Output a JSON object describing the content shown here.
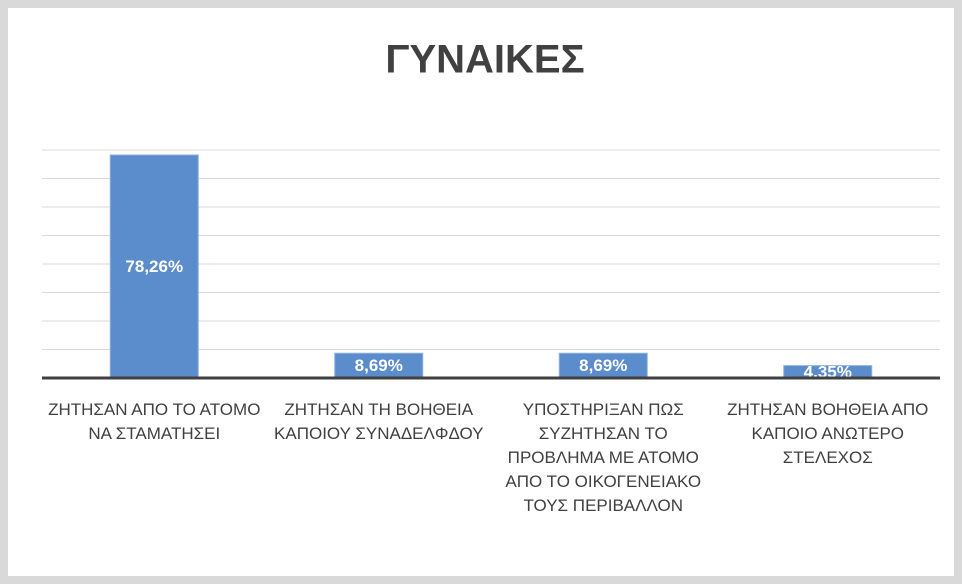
{
  "chart_data": {
    "type": "bar",
    "title": "ΓΥΝΑΙΚΕΣ",
    "categories": [
      "ΖΗΤΗΣΑΝ ΑΠΟ ΤΟ ΑΤΟΜΟ ΝΑ ΣΤΑΜΑΤΗΣΕΙ",
      "ΖΗΤΗΣΑΝ ΤΗ ΒΟΗΘΕΙΑ ΚΑΠΟΙΟΥ ΣΥΝΑΔΕΛΦΔΟΥ",
      "ΥΠΟΣΤΗΡΙΞΑΝ ΠΩΣ ΣΥΖΗΤΗΣΑΝ ΤΟ ΠΡΟΒΛΗΜΑ ΜΕ ΑΤΟΜΟ ΑΠΟ ΤΟ ΟΙΚΟΓΕΝΕΙΑΚΟ ΤΟΥΣ ΠΕΡΙΒΑΛΛΟΝ",
      "ΖΗΤΗΣΑΝ ΒΟΗΘΕΙΑ ΑΠΟ ΚΑΠΟΙΟ ΑΝΩΤΕΡΟ ΣΤΕΛΕΧΟΣ"
    ],
    "values": [
      78.26,
      8.69,
      8.69,
      4.35
    ],
    "value_labels": [
      "78,26%",
      "8,69%",
      "8,69%",
      "4,35%"
    ],
    "color": "#5b8ccb",
    "ylim": [
      0,
      80
    ],
    "yticks": [
      0,
      10,
      20,
      30,
      40,
      50,
      60,
      70,
      80
    ],
    "grid": true
  }
}
